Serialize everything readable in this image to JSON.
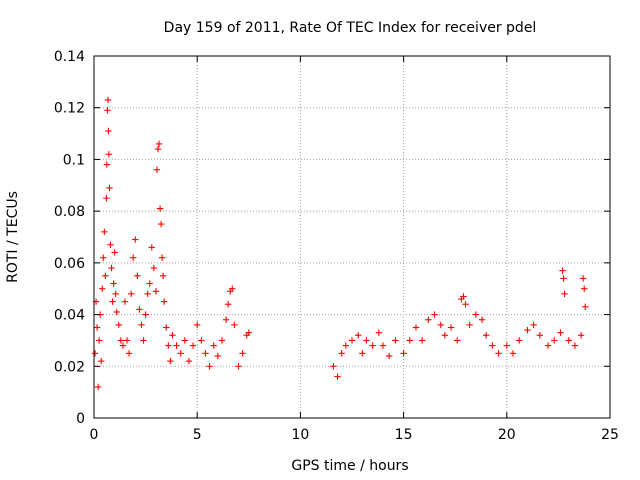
{
  "chart_data": {
    "type": "scatter",
    "title": "Day 159 of 2011, Rate Of TEC Index for receiver pdel",
    "xlabel": "GPS time / hours",
    "ylabel": "ROTI / TECUs",
    "xlim": [
      0,
      25
    ],
    "ylim": [
      0,
      0.14
    ],
    "grid": true,
    "marker": "+",
    "color": "#ff0000",
    "x_ticks": [
      0,
      5,
      10,
      15,
      20,
      25
    ],
    "x_tick_labels": [
      "0",
      "5",
      "10",
      "15",
      "20",
      "25"
    ],
    "y_ticks": [
      0,
      0.02,
      0.04,
      0.06,
      0.08,
      0.1,
      0.12,
      0.14
    ],
    "y_tick_labels": [
      "0",
      "0.02",
      "0.04",
      "0.06",
      "0.08",
      "0.1",
      "0.12",
      "0.14"
    ],
    "series": [
      {
        "name": "ROTI",
        "points": [
          [
            0.05,
            0.025
          ],
          [
            0.1,
            0.045
          ],
          [
            0.15,
            0.035
          ],
          [
            0.2,
            0.012
          ],
          [
            0.25,
            0.03
          ],
          [
            0.3,
            0.04
          ],
          [
            0.35,
            0.022
          ],
          [
            0.4,
            0.05
          ],
          [
            0.45,
            0.062
          ],
          [
            0.5,
            0.072
          ],
          [
            0.55,
            0.055
          ],
          [
            0.6,
            0.085
          ],
          [
            0.62,
            0.098
          ],
          [
            0.65,
            0.119
          ],
          [
            0.68,
            0.123
          ],
          [
            0.7,
            0.111
          ],
          [
            0.72,
            0.102
          ],
          [
            0.75,
            0.089
          ],
          [
            0.8,
            0.067
          ],
          [
            0.85,
            0.058
          ],
          [
            0.9,
            0.045
          ],
          [
            0.95,
            0.052
          ],
          [
            1.0,
            0.064
          ],
          [
            1.05,
            0.048
          ],
          [
            1.1,
            0.041
          ],
          [
            1.2,
            0.036
          ],
          [
            1.3,
            0.03
          ],
          [
            1.4,
            0.028
          ],
          [
            1.5,
            0.045
          ],
          [
            1.6,
            0.03
          ],
          [
            1.7,
            0.025
          ],
          [
            1.8,
            0.048
          ],
          [
            1.9,
            0.062
          ],
          [
            2.0,
            0.069
          ],
          [
            2.1,
            0.055
          ],
          [
            2.2,
            0.042
          ],
          [
            2.3,
            0.036
          ],
          [
            2.4,
            0.03
          ],
          [
            2.5,
            0.04
          ],
          [
            2.6,
            0.048
          ],
          [
            2.7,
            0.052
          ],
          [
            2.8,
            0.066
          ],
          [
            2.9,
            0.058
          ],
          [
            3.0,
            0.049
          ],
          [
            3.05,
            0.096
          ],
          [
            3.1,
            0.104
          ],
          [
            3.15,
            0.106
          ],
          [
            3.2,
            0.081
          ],
          [
            3.25,
            0.075
          ],
          [
            3.3,
            0.062
          ],
          [
            3.35,
            0.055
          ],
          [
            3.4,
            0.045
          ],
          [
            3.5,
            0.035
          ],
          [
            3.6,
            0.028
          ],
          [
            3.7,
            0.022
          ],
          [
            3.8,
            0.032
          ],
          [
            4.0,
            0.028
          ],
          [
            4.2,
            0.025
          ],
          [
            4.4,
            0.03
          ],
          [
            4.6,
            0.022
          ],
          [
            4.8,
            0.028
          ],
          [
            5.0,
            0.036
          ],
          [
            5.2,
            0.03
          ],
          [
            5.4,
            0.025
          ],
          [
            5.6,
            0.02
          ],
          [
            5.8,
            0.028
          ],
          [
            6.0,
            0.024
          ],
          [
            6.2,
            0.03
          ],
          [
            6.4,
            0.038
          ],
          [
            6.5,
            0.044
          ],
          [
            6.6,
            0.049
          ],
          [
            6.7,
            0.05
          ],
          [
            6.8,
            0.036
          ],
          [
            7.0,
            0.02
          ],
          [
            7.2,
            0.025
          ],
          [
            7.4,
            0.032
          ],
          [
            7.5,
            0.033
          ],
          [
            11.6,
            0.02
          ],
          [
            11.8,
            0.016
          ],
          [
            12.0,
            0.025
          ],
          [
            12.2,
            0.028
          ],
          [
            12.5,
            0.03
          ],
          [
            12.8,
            0.032
          ],
          [
            13.0,
            0.025
          ],
          [
            13.2,
            0.03
          ],
          [
            13.5,
            0.028
          ],
          [
            13.8,
            0.033
          ],
          [
            14.0,
            0.028
          ],
          [
            14.3,
            0.024
          ],
          [
            14.6,
            0.03
          ],
          [
            15.0,
            0.025
          ],
          [
            15.3,
            0.03
          ],
          [
            15.6,
            0.035
          ],
          [
            15.9,
            0.03
          ],
          [
            16.2,
            0.038
          ],
          [
            16.5,
            0.04
          ],
          [
            16.8,
            0.036
          ],
          [
            17.0,
            0.032
          ],
          [
            17.3,
            0.035
          ],
          [
            17.6,
            0.03
          ],
          [
            17.8,
            0.046
          ],
          [
            17.9,
            0.047
          ],
          [
            18.0,
            0.044
          ],
          [
            18.2,
            0.036
          ],
          [
            18.5,
            0.04
          ],
          [
            18.8,
            0.038
          ],
          [
            19.0,
            0.032
          ],
          [
            19.3,
            0.028
          ],
          [
            19.6,
            0.025
          ],
          [
            20.0,
            0.028
          ],
          [
            20.3,
            0.025
          ],
          [
            20.6,
            0.03
          ],
          [
            21.0,
            0.034
          ],
          [
            21.3,
            0.036
          ],
          [
            21.6,
            0.032
          ],
          [
            22.0,
            0.028
          ],
          [
            22.3,
            0.03
          ],
          [
            22.6,
            0.033
          ],
          [
            22.7,
            0.057
          ],
          [
            22.75,
            0.054
          ],
          [
            22.8,
            0.048
          ],
          [
            23.0,
            0.03
          ],
          [
            23.3,
            0.028
          ],
          [
            23.6,
            0.032
          ],
          [
            23.7,
            0.054
          ],
          [
            23.75,
            0.05
          ],
          [
            23.8,
            0.043
          ]
        ]
      }
    ]
  }
}
